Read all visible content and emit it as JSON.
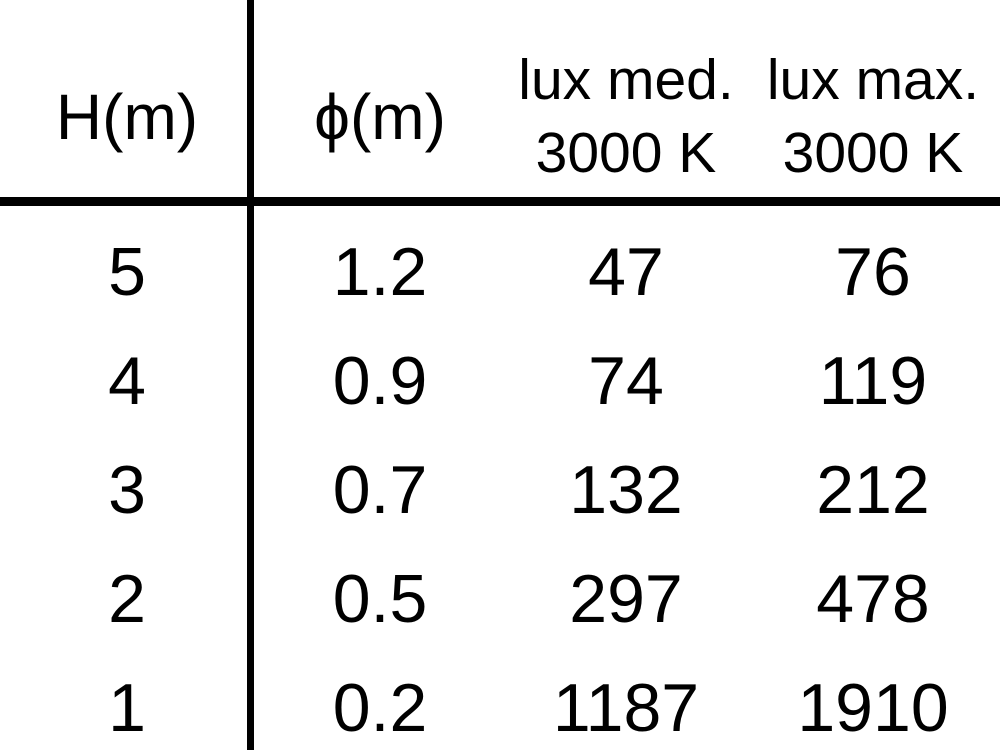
{
  "table": {
    "header": {
      "col1": "H(m)",
      "col2": "ϕ(m)",
      "col3_line1": "lux med.",
      "col3_line2": "3000 K",
      "col4_line1": "lux max.",
      "col4_line2": "3000 K"
    },
    "rows": [
      {
        "h": "5",
        "phi": "1.2",
        "lux_med": "47",
        "lux_max": "76"
      },
      {
        "h": "4",
        "phi": "0.9",
        "lux_med": "74",
        "lux_max": "119"
      },
      {
        "h": "3",
        "phi": "0.7",
        "lux_med": "132",
        "lux_max": "212"
      },
      {
        "h": "2",
        "phi": "0.5",
        "lux_med": "297",
        "lux_max": "478"
      },
      {
        "h": "1",
        "phi": "0.2",
        "lux_med": "1187",
        "lux_max": "1910"
      }
    ]
  },
  "chart_data": {
    "type": "table",
    "title": "",
    "columns": [
      "H(m)",
      "ϕ(m)",
      "lux med. 3000 K",
      "lux max. 3000 K"
    ],
    "rows": [
      [
        5,
        1.2,
        47,
        76
      ],
      [
        4,
        0.9,
        74,
        119
      ],
      [
        3,
        0.7,
        132,
        212
      ],
      [
        2,
        0.5,
        297,
        478
      ],
      [
        1,
        0.2,
        1187,
        1910
      ]
    ]
  },
  "colors": {
    "text": "#000000",
    "background": "#ffffff",
    "line": "#000000"
  }
}
